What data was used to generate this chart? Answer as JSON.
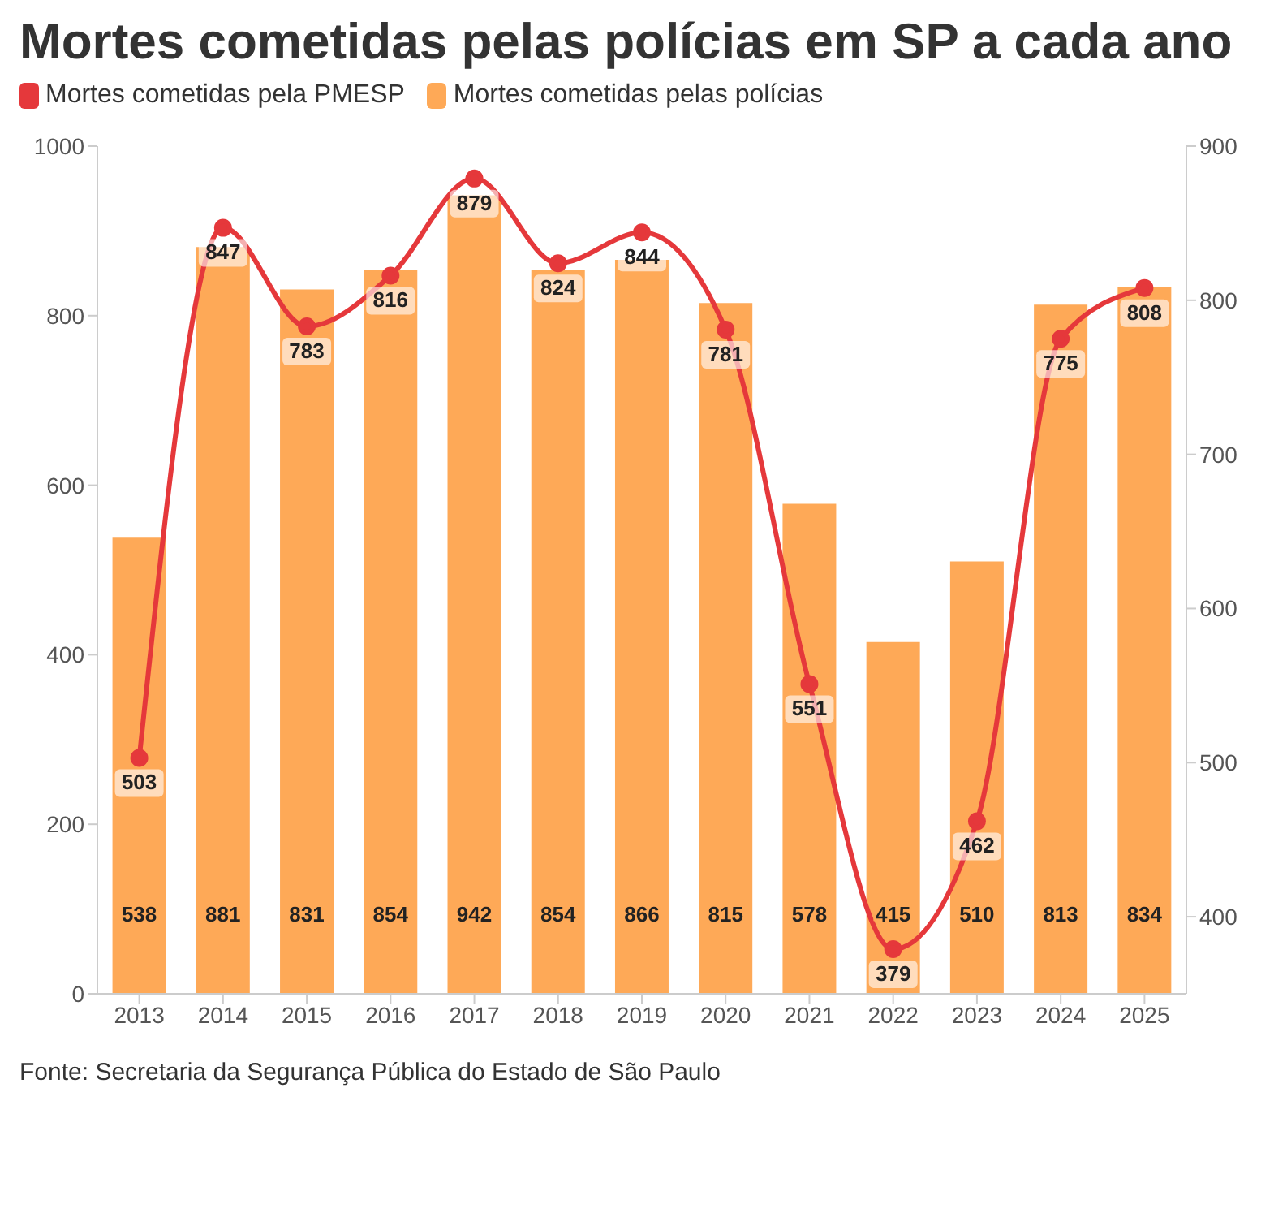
{
  "chart_data": {
    "type": "bar",
    "title": "Mortes cometidas pelas polícias em SP a cada ano",
    "categories": [
      "2013",
      "2014",
      "2015",
      "2016",
      "2017",
      "2018",
      "2019",
      "2020",
      "2021",
      "2022",
      "2023",
      "2024",
      "2025"
    ],
    "series": [
      {
        "name": "Mortes cometidas pela PMESP",
        "type": "line",
        "axis": "y2",
        "color": "#e5383b",
        "values": [
          503,
          847,
          783,
          816,
          879,
          824,
          844,
          781,
          551,
          379,
          462,
          775,
          808
        ]
      },
      {
        "name": "Mortes cometidas pelas polícias",
        "color": "#fea957",
        "values": [
          538,
          881,
          831,
          854,
          942,
          854,
          866,
          815,
          578,
          415,
          510,
          813,
          834
        ]
      }
    ],
    "ylim": [
      0,
      1000
    ],
    "yticks": [
      0,
      200,
      400,
      600,
      800,
      1000
    ],
    "y2lim": [
      350,
      900
    ],
    "y2ticks": [
      400,
      500,
      600,
      700,
      800,
      900
    ],
    "data_labels": true,
    "legend": "top left",
    "marker": "circle",
    "annotations": [
      "Fonte: Secretaria da Segurança Pública do Estado de São Paulo"
    ]
  }
}
